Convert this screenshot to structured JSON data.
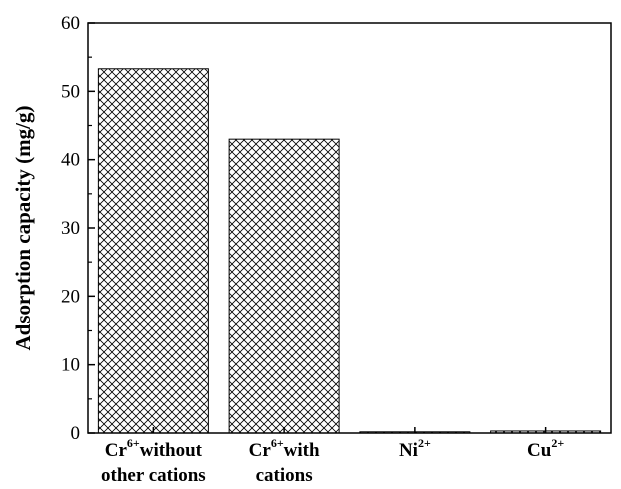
{
  "chart_data": {
    "type": "bar",
    "categories": [
      {
        "lines": [
          {
            "base": "Cr",
            "sup": "6+",
            "rest": "without"
          },
          {
            "base": "other cations",
            "sup": "",
            "rest": ""
          }
        ]
      },
      {
        "lines": [
          {
            "base": "Cr",
            "sup": "6+",
            "rest": "with"
          },
          {
            "base": "cations",
            "sup": "",
            "rest": ""
          }
        ]
      },
      {
        "lines": [
          {
            "base": "Ni",
            "sup": "2+",
            "rest": ""
          }
        ]
      },
      {
        "lines": [
          {
            "base": "Cu",
            "sup": "2+",
            "rest": ""
          }
        ]
      }
    ],
    "values": [
      53.3,
      43.0,
      0.1,
      0.3
    ],
    "title": "",
    "xlabel": "",
    "ylabel": "Adsorption capacity (mg/g)",
    "ylim": [
      0,
      60
    ],
    "yticks": [
      0,
      10,
      20,
      30,
      40,
      50,
      60
    ],
    "grid": false,
    "bar_pattern": "crosshatch"
  }
}
